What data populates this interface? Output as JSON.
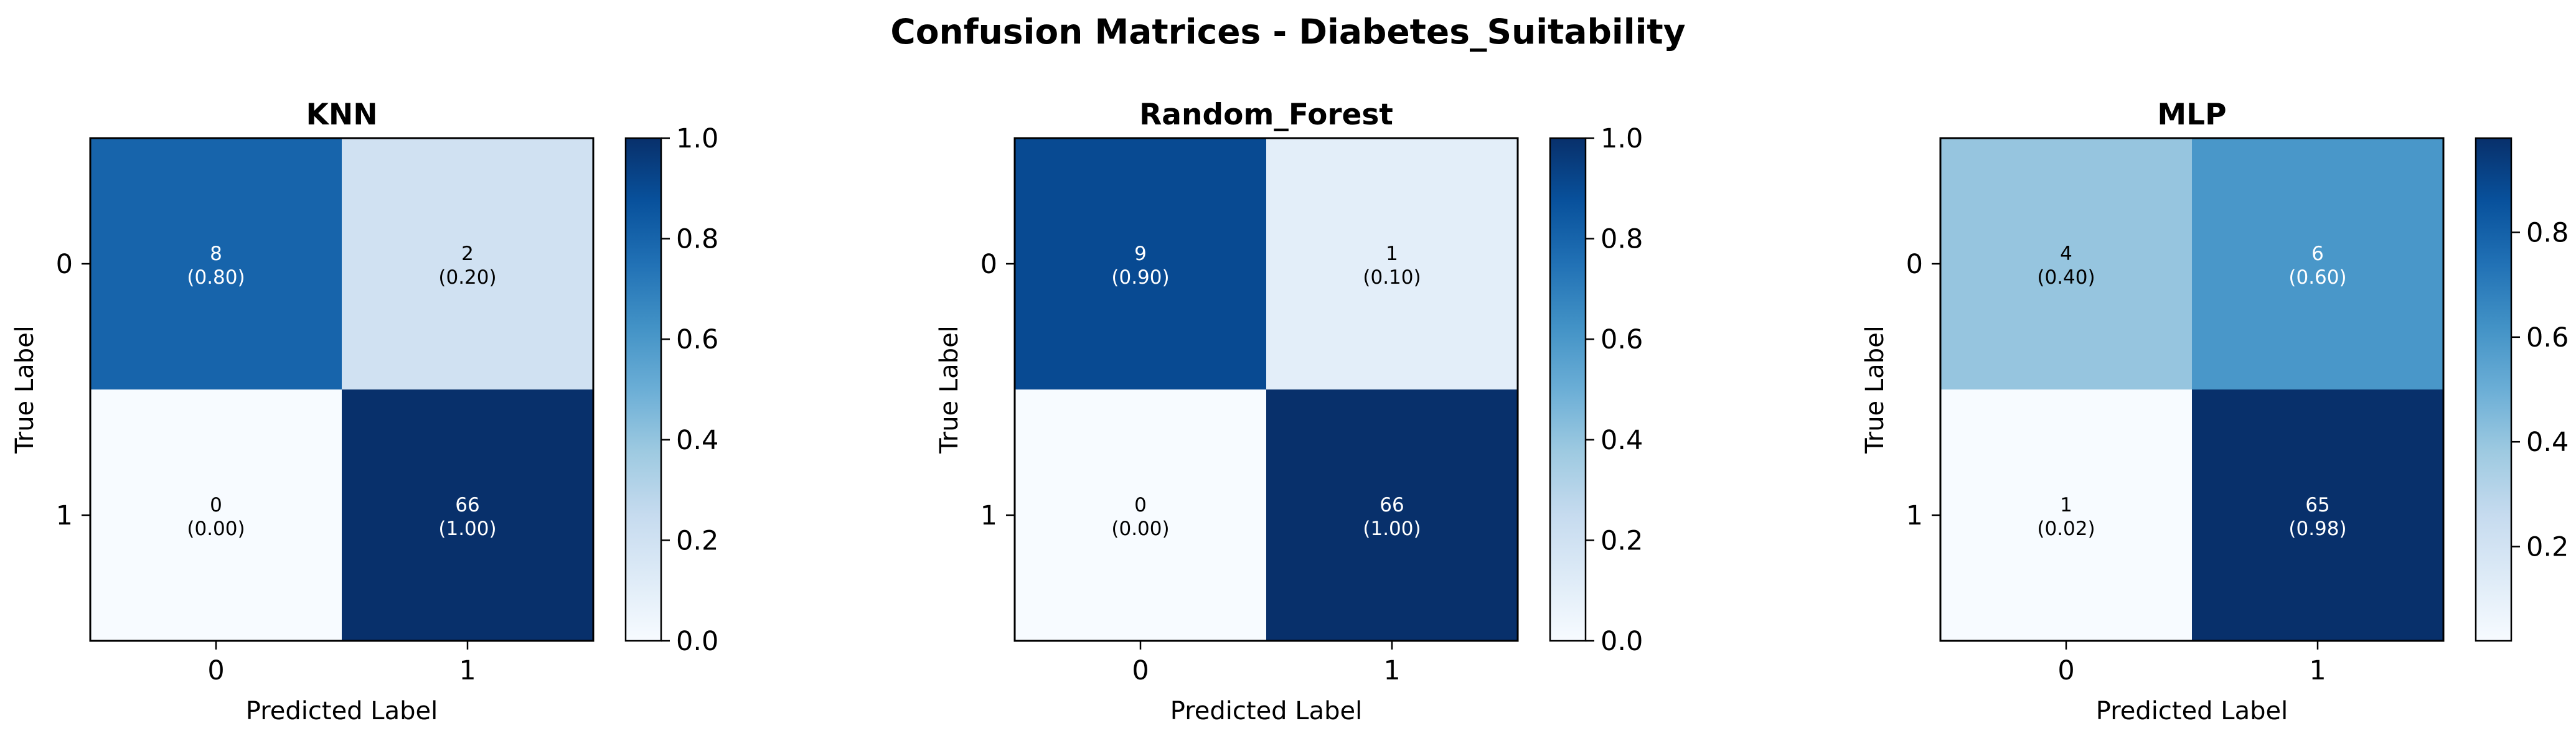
{
  "chart_data": {
    "type": "heatmap",
    "title": "Confusion Matrices - Diabetes_Suitability",
    "colormap": "Blues",
    "panels": [
      {
        "title": "KNN",
        "xlabel": "Predicted Label",
        "ylabel": "True Label",
        "x_categories": [
          "0",
          "1"
        ],
        "y_categories": [
          "0",
          "1"
        ],
        "counts": [
          [
            8,
            2
          ],
          [
            0,
            66
          ]
        ],
        "normalized": [
          [
            0.8,
            0.2
          ],
          [
            0.0,
            1.0
          ]
        ],
        "cell_text": [
          [
            "8\n(0.80)",
            "2\n(0.20)"
          ],
          [
            "0\n(0.00)",
            "66\n(1.00)"
          ]
        ],
        "colorbar": {
          "range": [
            0.0,
            1.0
          ],
          "ticks": [
            0.0,
            0.2,
            0.4,
            0.6,
            0.8,
            1.0
          ],
          "tick_labels": [
            "0.0",
            "0.2",
            "0.4",
            "0.6",
            "0.8",
            "1.0"
          ]
        }
      },
      {
        "title": "Random_Forest",
        "xlabel": "Predicted Label",
        "ylabel": "True Label",
        "x_categories": [
          "0",
          "1"
        ],
        "y_categories": [
          "0",
          "1"
        ],
        "counts": [
          [
            9,
            1
          ],
          [
            0,
            66
          ]
        ],
        "normalized": [
          [
            0.9,
            0.1
          ],
          [
            0.0,
            1.0
          ]
        ],
        "cell_text": [
          [
            "9\n(0.90)",
            "1\n(0.10)"
          ],
          [
            "0\n(0.00)",
            "66\n(1.00)"
          ]
        ],
        "colorbar": {
          "range": [
            0.0,
            1.0
          ],
          "ticks": [
            0.0,
            0.2,
            0.4,
            0.6,
            0.8,
            1.0
          ],
          "tick_labels": [
            "0.0",
            "0.2",
            "0.4",
            "0.6",
            "0.8",
            "1.0"
          ]
        }
      },
      {
        "title": "MLP",
        "xlabel": "Predicted Label",
        "ylabel": "True Label",
        "x_categories": [
          "0",
          "1"
        ],
        "y_categories": [
          "0",
          "1"
        ],
        "counts": [
          [
            4,
            6
          ],
          [
            1,
            65
          ]
        ],
        "normalized": [
          [
            0.4,
            0.6
          ],
          [
            0.02,
            0.98
          ]
        ],
        "cell_text": [
          [
            "4\n(0.40)",
            "6\n(0.60)"
          ],
          [
            "1\n(0.02)",
            "65\n(0.98)"
          ]
        ],
        "colorbar": {
          "range": [
            0.02,
            0.98
          ],
          "ticks": [
            0.2,
            0.4,
            0.6,
            0.8
          ],
          "tick_labels": [
            "0.2",
            "0.4",
            "0.6",
            "0.8"
          ]
        }
      }
    ]
  }
}
